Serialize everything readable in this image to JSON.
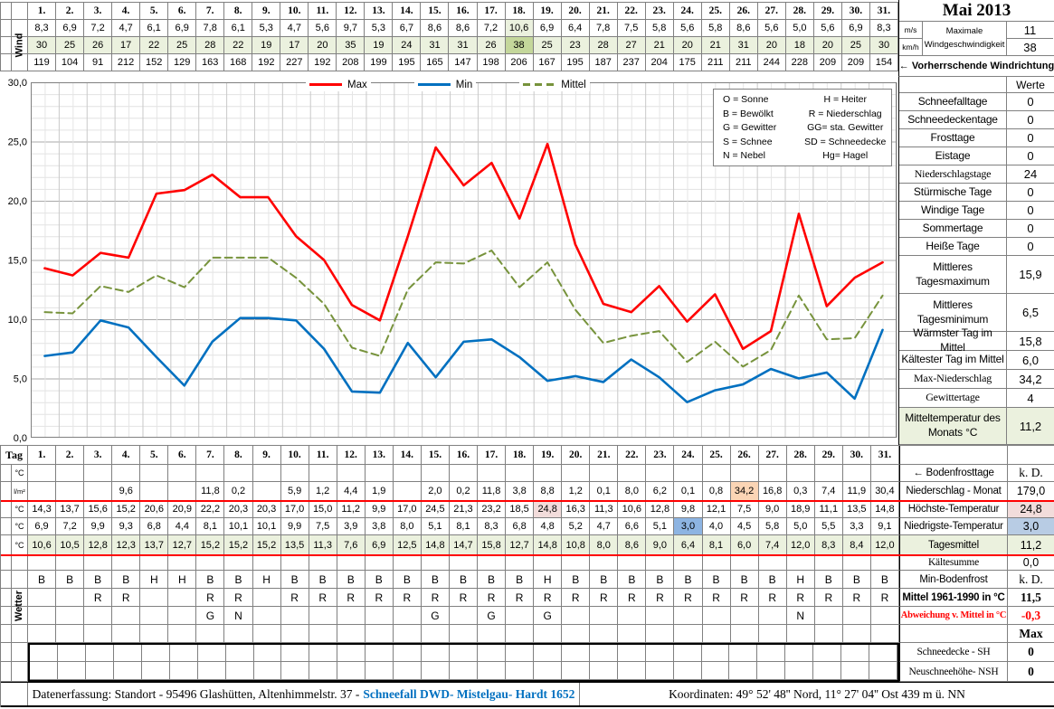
{
  "title": "Mai 2013",
  "colors": {
    "accent_red": "#FF0000",
    "max_line": "#FF0000",
    "min_line": "#0070C0",
    "mittel_line": "#77933C",
    "light_green": "#EBF1DE",
    "med_green": "#C4D79B",
    "orange": "#FBD5B5",
    "pink": "#F2DCDB",
    "blue": "#8DB4E2",
    "light_blue": "#B8CCE4",
    "link_blue": "#0070C0"
  },
  "days": [
    "1.",
    "2.",
    "3.",
    "4.",
    "5.",
    "6.",
    "7.",
    "8.",
    "9.",
    "10.",
    "11.",
    "12.",
    "13.",
    "14.",
    "15.",
    "16.",
    "17.",
    "18.",
    "19.",
    "20.",
    "21.",
    "22.",
    "23.",
    "24.",
    "25.",
    "26.",
    "27.",
    "28.",
    "29.",
    "30.",
    "31."
  ],
  "wind": {
    "label": "Wind",
    "ms": [
      "8,3",
      "6,9",
      "7,2",
      "4,7",
      "6,1",
      "6,9",
      "7,8",
      "6,1",
      "5,3",
      "4,7",
      "5,6",
      "9,7",
      "5,3",
      "6,7",
      "8,6",
      "8,6",
      "7,2",
      "10,6",
      "6,9",
      "6,4",
      "7,8",
      "7,5",
      "5,8",
      "5,6",
      "5,8",
      "8,6",
      "5,6",
      "5,0",
      "5,6",
      "6,9",
      "8,3"
    ],
    "kmh": [
      "30",
      "25",
      "26",
      "17",
      "22",
      "25",
      "28",
      "22",
      "19",
      "17",
      "20",
      "35",
      "19",
      "24",
      "31",
      "31",
      "26",
      "38",
      "25",
      "23",
      "28",
      "27",
      "21",
      "20",
      "21",
      "31",
      "20",
      "18",
      "20",
      "25",
      "30"
    ],
    "dir": [
      "119",
      "104",
      "91",
      "212",
      "152",
      "129",
      "163",
      "168",
      "192",
      "227",
      "192",
      "208",
      "199",
      "195",
      "165",
      "147",
      "198",
      "206",
      "167",
      "195",
      "187",
      "237",
      "204",
      "175",
      "211",
      "211",
      "244",
      "228",
      "209",
      "209",
      "154"
    ],
    "unit_ms": "m/s",
    "unit_kmh": "km/h",
    "max_label_1": "Maximale",
    "max_label_2": "Windgeschwindigkeit",
    "max_ms": "11",
    "max_kmh": "38",
    "dir_note": "←  Vorherrschende Windrichtung",
    "max_day_index": 17
  },
  "chart_data": {
    "type": "line",
    "x": [
      1,
      2,
      3,
      4,
      5,
      6,
      7,
      8,
      9,
      10,
      11,
      12,
      13,
      14,
      15,
      16,
      17,
      18,
      19,
      20,
      21,
      22,
      23,
      24,
      25,
      26,
      27,
      28,
      29,
      30,
      31
    ],
    "series": [
      {
        "name": "Max",
        "color": "#FF0000",
        "style": "solid",
        "values": [
          14.3,
          13.7,
          15.6,
          15.2,
          20.6,
          20.9,
          22.2,
          20.3,
          20.3,
          17.0,
          15.0,
          11.2,
          9.9,
          17.0,
          24.5,
          21.3,
          23.2,
          18.5,
          24.8,
          16.3,
          11.3,
          10.6,
          12.8,
          9.8,
          12.1,
          7.5,
          9.0,
          18.9,
          11.1,
          13.5,
          14.8
        ]
      },
      {
        "name": "Min",
        "color": "#0070C0",
        "style": "solid",
        "values": [
          6.9,
          7.2,
          9.9,
          9.3,
          6.8,
          4.4,
          8.1,
          10.1,
          10.1,
          9.9,
          7.5,
          3.9,
          3.8,
          8.0,
          5.1,
          8.1,
          8.3,
          6.8,
          4.8,
          5.2,
          4.7,
          6.6,
          5.1,
          3.0,
          4.0,
          4.5,
          5.8,
          5.0,
          5.5,
          3.3,
          9.1
        ]
      },
      {
        "name": "Mittel",
        "color": "#77933C",
        "style": "dashed",
        "values": [
          10.6,
          10.5,
          12.8,
          12.3,
          13.7,
          12.7,
          15.2,
          15.2,
          15.2,
          13.5,
          11.3,
          7.6,
          6.9,
          12.5,
          14.8,
          14.7,
          15.8,
          12.7,
          14.8,
          10.8,
          8.0,
          8.6,
          9.0,
          6.4,
          8.1,
          6.0,
          7.4,
          12.0,
          8.3,
          8.4,
          12.0
        ]
      }
    ],
    "ylim": [
      0,
      30
    ],
    "ytick_step": 5,
    "ytick_labels": [
      "30,0",
      "25,0",
      "20,0",
      "15,0",
      "10,0",
      "5,0",
      "0,0"
    ],
    "grid": true,
    "legend_position": "top-center",
    "codes_legend": [
      [
        "O = Sonne",
        "H = Heiter"
      ],
      [
        "B = Bewölkt",
        "R = Niederschlag"
      ],
      [
        "G = Gewitter",
        "GG= sta. Gewitter"
      ],
      [
        "S = Schnee",
        "SD = Schneedecke"
      ],
      [
        "N = Nebel",
        "Hg= Hagel"
      ]
    ]
  },
  "stats": {
    "header": "Werte",
    "rows": [
      {
        "label": "Schneefalltage",
        "value": "0"
      },
      {
        "label": "Schneedeckentage",
        "value": "0"
      },
      {
        "label": "Frosttage",
        "value": "0"
      },
      {
        "label": "Eistage",
        "value": "0"
      },
      {
        "label": "Niederschlagstage",
        "value": "24",
        "label_style": "serif"
      },
      {
        "label": "Stürmische Tage",
        "value": "0"
      },
      {
        "label": "Windige Tage",
        "value": "0"
      },
      {
        "label": "Sommertage",
        "value": "0"
      },
      {
        "label": "Heiße Tage",
        "value": "0"
      },
      {
        "label": "Mittleres Tagesmaximum",
        "value": "15,9"
      },
      {
        "label": "Mittleres Tagesminimum",
        "value": "6,5"
      },
      {
        "label": "Wärmster Tag im Mittel",
        "value": "15,8"
      },
      {
        "label": "Kältester Tag im Mittel",
        "value": "6,0"
      },
      {
        "label": "Max-Niederschlag",
        "value": "34,2",
        "label_style": "serif"
      },
      {
        "label": "Gewittertage",
        "value": "4",
        "label_style": "serif"
      },
      {
        "label": "Mitteltemperatur des Monats °C",
        "value": "11,2",
        "row_style": "green"
      }
    ]
  },
  "bottom": {
    "tag_label": "Tag",
    "wetter_label": "Wetter",
    "rows": [
      {
        "id": "soil",
        "unit": "°C",
        "values": [],
        "summary": {
          "label": "← Bodenfrosttage",
          "value": "k. D.",
          "value_style": "serif"
        }
      },
      {
        "id": "precip",
        "unit": "l/m²",
        "values": [
          "",
          "",
          "",
          "9,6",
          "",
          "",
          "11,8",
          "0,2",
          "",
          "5,9",
          "1,2",
          "4,4",
          "1,9",
          "",
          "2,0",
          "0,2",
          "11,8",
          "3,8",
          "8,8",
          "1,2",
          "0,1",
          "8,0",
          "6,2",
          "0,1",
          "0,8",
          "34,2",
          "16,8",
          "0,3",
          "7,4",
          "11,9",
          "30,4"
        ],
        "highlights": {
          "25": "hl-orange"
        },
        "redline": true,
        "summary": {
          "label": "Niederschlag - Monat",
          "value": "179,0"
        }
      },
      {
        "id": "tmax",
        "unit": "°C",
        "values": [
          "14,3",
          "13,7",
          "15,6",
          "15,2",
          "20,6",
          "20,9",
          "22,2",
          "20,3",
          "20,3",
          "17,0",
          "15,0",
          "11,2",
          "9,9",
          "17,0",
          "24,5",
          "21,3",
          "23,2",
          "18,5",
          "24,8",
          "16,3",
          "11,3",
          "10,6",
          "12,8",
          "9,8",
          "12,1",
          "7,5",
          "9,0",
          "18,9",
          "11,1",
          "13,5",
          "14,8"
        ],
        "highlights": {
          "18": "hl-pink"
        },
        "summary": {
          "label": "Höchste-Temperatur",
          "value": "24,8",
          "value_style": "pink"
        }
      },
      {
        "id": "tmin",
        "unit": "°C",
        "values": [
          "6,9",
          "7,2",
          "9,9",
          "9,3",
          "6,8",
          "4,4",
          "8,1",
          "10,1",
          "10,1",
          "9,9",
          "7,5",
          "3,9",
          "3,8",
          "8,0",
          "5,1",
          "8,1",
          "8,3",
          "6,8",
          "4,8",
          "5,2",
          "4,7",
          "6,6",
          "5,1",
          "3,0",
          "4,0",
          "4,5",
          "5,8",
          "5,0",
          "5,5",
          "3,3",
          "9,1"
        ],
        "highlights": {
          "23": "hl-blue"
        },
        "summary": {
          "label": "Niedrigste-Temperatur",
          "value": "3,0",
          "value_style": "lblue"
        }
      },
      {
        "id": "tmean",
        "unit": "°C",
        "values": [
          "10,6",
          "10,5",
          "12,8",
          "12,3",
          "13,7",
          "12,7",
          "15,2",
          "15,2",
          "15,2",
          "13,5",
          "11,3",
          "7,6",
          "6,9",
          "12,5",
          "14,8",
          "14,7",
          "15,8",
          "12,7",
          "14,8",
          "10,8",
          "8,0",
          "8,6",
          "9,0",
          "6,4",
          "8,1",
          "6,0",
          "7,4",
          "12,0",
          "8,3",
          "8,4",
          "12,0"
        ],
        "row_style": "green",
        "redline": true,
        "summary": {
          "label": "Tagesmittel",
          "value": "11,2",
          "label_style": "green",
          "value_style": "green"
        }
      },
      {
        "id": "gap",
        "unit": "",
        "values": [],
        "summary": {
          "label": "Kältesumme",
          "value": "0,0",
          "label_style": "serif"
        }
      },
      {
        "id": "wx1",
        "unit": "",
        "values": [
          "B",
          "B",
          "B",
          "B",
          "H",
          "H",
          "B",
          "B",
          "H",
          "B",
          "B",
          "B",
          "B",
          "B",
          "B",
          "B",
          "B",
          "B",
          "H",
          "B",
          "B",
          "B",
          "B",
          "B",
          "B",
          "B",
          "B",
          "H",
          "B",
          "B",
          "B"
        ],
        "summary": {
          "label": "Min-Bodenfrost",
          "value": "k. D.",
          "value_style": "serif"
        }
      },
      {
        "id": "wx2",
        "unit": "",
        "values": [
          "",
          "",
          "R",
          "R",
          "",
          "",
          "R",
          "R",
          "",
          "R",
          "R",
          "R",
          "R",
          "R",
          "R",
          "R",
          "R",
          "R",
          "R",
          "R",
          "R",
          "R",
          "R",
          "R",
          "R",
          "R",
          "R",
          "R",
          "R",
          "R",
          "R"
        ],
        "summary": {
          "label": "Mittel 1961-1990 in °C",
          "value": "11,5",
          "label_style": "bold",
          "value_style": "serif bold"
        }
      },
      {
        "id": "wx3",
        "unit": "",
        "values": [
          "",
          "",
          "",
          "",
          "",
          "",
          "G",
          "N",
          "",
          "",
          "",
          "",
          "",
          "",
          "G",
          "",
          "G",
          "",
          "G",
          "",
          "",
          "",
          "",
          "",
          "",
          "",
          "",
          "N",
          "",
          "",
          ""
        ],
        "summary": {
          "label": "Abweichung v. Mittel in °C",
          "value": "-0,3",
          "label_style": "serif bold red small",
          "value_style": "serif bold red"
        }
      },
      {
        "id": "wx4",
        "unit": "",
        "values": [],
        "summary": {
          "label": "",
          "value": "Max",
          "value_style": "serif bold"
        }
      },
      {
        "id": "sh",
        "unit": "",
        "values": [],
        "thick": "top",
        "summary": {
          "label": "Schneedecke -   SH",
          "value": "0",
          "label_style": "serif",
          "value_style": "serif bold"
        }
      },
      {
        "id": "nsh",
        "unit": "",
        "values": [],
        "thick": "bottom",
        "summary": {
          "label": "Neuschneehöhe- NSH",
          "value": "0",
          "label_style": "serif",
          "value_style": "serif bold"
        }
      }
    ]
  },
  "footer": {
    "left_prefix": "Datenerfassung:  Standort -  95496  Glashütten, Altenhimmelstr. 37 -",
    "link": "Schneefall DWD- Mistelgau- Hardt 1652",
    "right": "Koordinaten:  49° 52' 48'' Nord,   11° 27' 04'' Ost   439 m ü. NN"
  }
}
